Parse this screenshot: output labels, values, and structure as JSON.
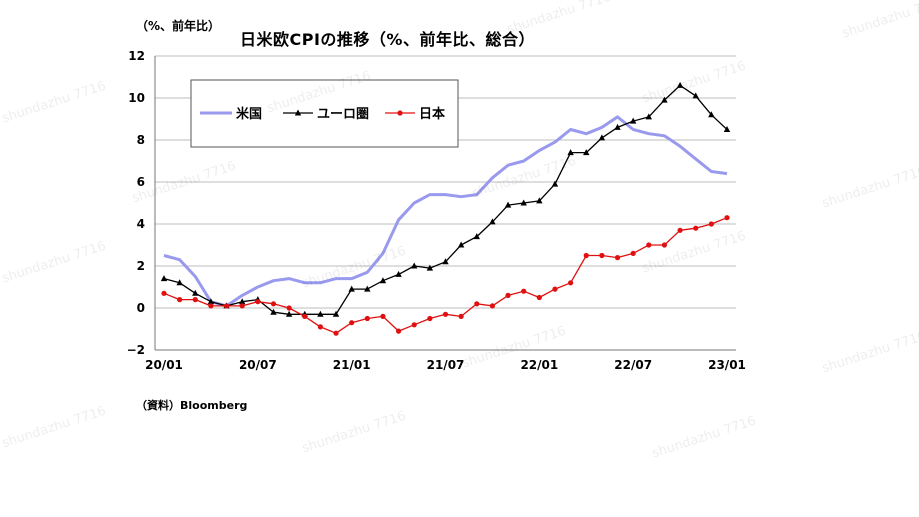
{
  "header": {
    "unit_label": "（%、前年比）",
    "title": "日米欧CPIの推移（%、前年比、総合）"
  },
  "source_label": "（資料）Bloomberg",
  "watermark_text": "shundazhu 7716",
  "chart_data": {
    "type": "line",
    "title": "日米欧CPIの推移（%、前年比、総合）",
    "xlabel": "",
    "ylabel": "（%、前年比）",
    "x": [
      "2020-01",
      "2020-02",
      "2020-03",
      "2020-04",
      "2020-05",
      "2020-06",
      "2020-07",
      "2020-08",
      "2020-09",
      "2020-10",
      "2020-11",
      "2020-12",
      "2021-01",
      "2021-02",
      "2021-03",
      "2021-04",
      "2021-05",
      "2021-06",
      "2021-07",
      "2021-08",
      "2021-09",
      "2021-10",
      "2021-11",
      "2021-12",
      "2022-01",
      "2022-02",
      "2022-03",
      "2022-04",
      "2022-05",
      "2022-06",
      "2022-07",
      "2022-08",
      "2022-09",
      "2022-10",
      "2022-11",
      "2022-12",
      "2023-01"
    ],
    "x_tick_labels": [
      "20/01",
      "20/07",
      "21/01",
      "21/07",
      "22/01",
      "22/07",
      "23/01"
    ],
    "x_tick_positions": [
      0,
      6,
      12,
      18,
      24,
      30,
      36
    ],
    "ylim": [
      -2,
      12
    ],
    "y_ticks": [
      -2,
      0,
      2,
      4,
      6,
      8,
      10,
      12
    ],
    "grid": "horizontal",
    "legend_position": "top-left",
    "series": [
      {
        "name": "米国",
        "color": "#9999ee",
        "marker": "none",
        "values": [
          2.5,
          2.3,
          1.5,
          0.3,
          0.1,
          0.6,
          1.0,
          1.3,
          1.4,
          1.2,
          1.2,
          1.4,
          1.4,
          1.7,
          2.6,
          4.2,
          5.0,
          5.4,
          5.4,
          5.3,
          5.4,
          6.2,
          6.8,
          7.0,
          7.5,
          7.9,
          8.5,
          8.3,
          8.6,
          9.1,
          8.5,
          8.3,
          8.2,
          7.7,
          7.1,
          6.5,
          6.4
        ]
      },
      {
        "name": "ユーロ圏",
        "color": "#000000",
        "marker": "triangle",
        "values": [
          1.4,
          1.2,
          0.7,
          0.3,
          0.1,
          0.3,
          0.4,
          -0.2,
          -0.3,
          -0.3,
          -0.3,
          -0.3,
          0.9,
          0.9,
          1.3,
          1.6,
          2.0,
          1.9,
          2.2,
          3.0,
          3.4,
          4.1,
          4.9,
          5.0,
          5.1,
          5.9,
          7.4,
          7.4,
          8.1,
          8.6,
          8.9,
          9.1,
          9.9,
          10.6,
          10.1,
          9.2,
          8.5
        ]
      },
      {
        "name": "日本",
        "color": "#e01010",
        "marker": "circle",
        "values": [
          0.7,
          0.4,
          0.4,
          0.1,
          0.1,
          0.1,
          0.3,
          0.2,
          0.0,
          -0.4,
          -0.9,
          -1.2,
          -0.7,
          -0.5,
          -0.4,
          -1.1,
          -0.8,
          -0.5,
          -0.3,
          -0.4,
          0.2,
          0.1,
          0.6,
          0.8,
          0.5,
          0.9,
          1.2,
          2.5,
          2.5,
          2.4,
          2.6,
          3.0,
          3.0,
          3.7,
          3.8,
          4.0,
          4.3
        ]
      }
    ]
  }
}
